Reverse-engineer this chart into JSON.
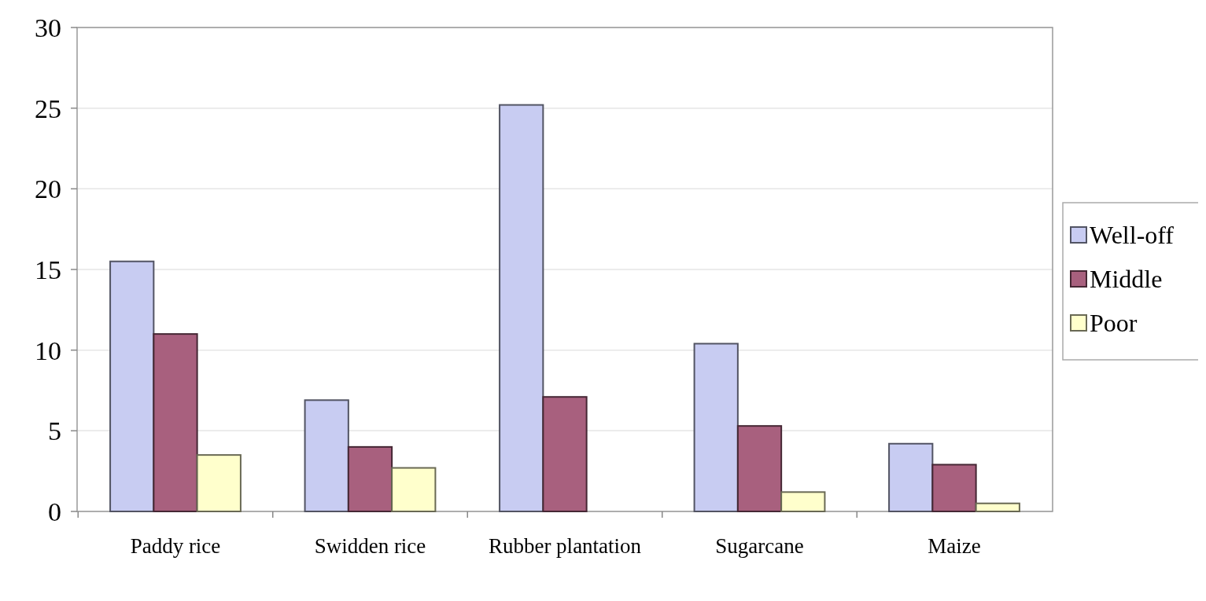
{
  "chart_data": {
    "type": "bar",
    "categories": [
      "Paddy rice",
      "Swidden rice",
      "Rubber plantation",
      "Sugarcane",
      "Maize"
    ],
    "series": [
      {
        "name": "Well-off",
        "color": "#c8ccf2",
        "values": [
          15.5,
          6.9,
          25.2,
          10.4,
          4.2
        ]
      },
      {
        "name": "Middle",
        "color": "#a8607e",
        "values": [
          11.0,
          4.0,
          7.1,
          5.3,
          2.9
        ]
      },
      {
        "name": "Poor",
        "color": "#ffffcc",
        "values": [
          3.5,
          2.7,
          0,
          1.2,
          0.5
        ]
      }
    ],
    "ylim": [
      0,
      30
    ],
    "yticks": [
      0,
      5,
      10,
      15,
      20,
      25,
      30
    ],
    "grid": "y",
    "legend": "right"
  }
}
